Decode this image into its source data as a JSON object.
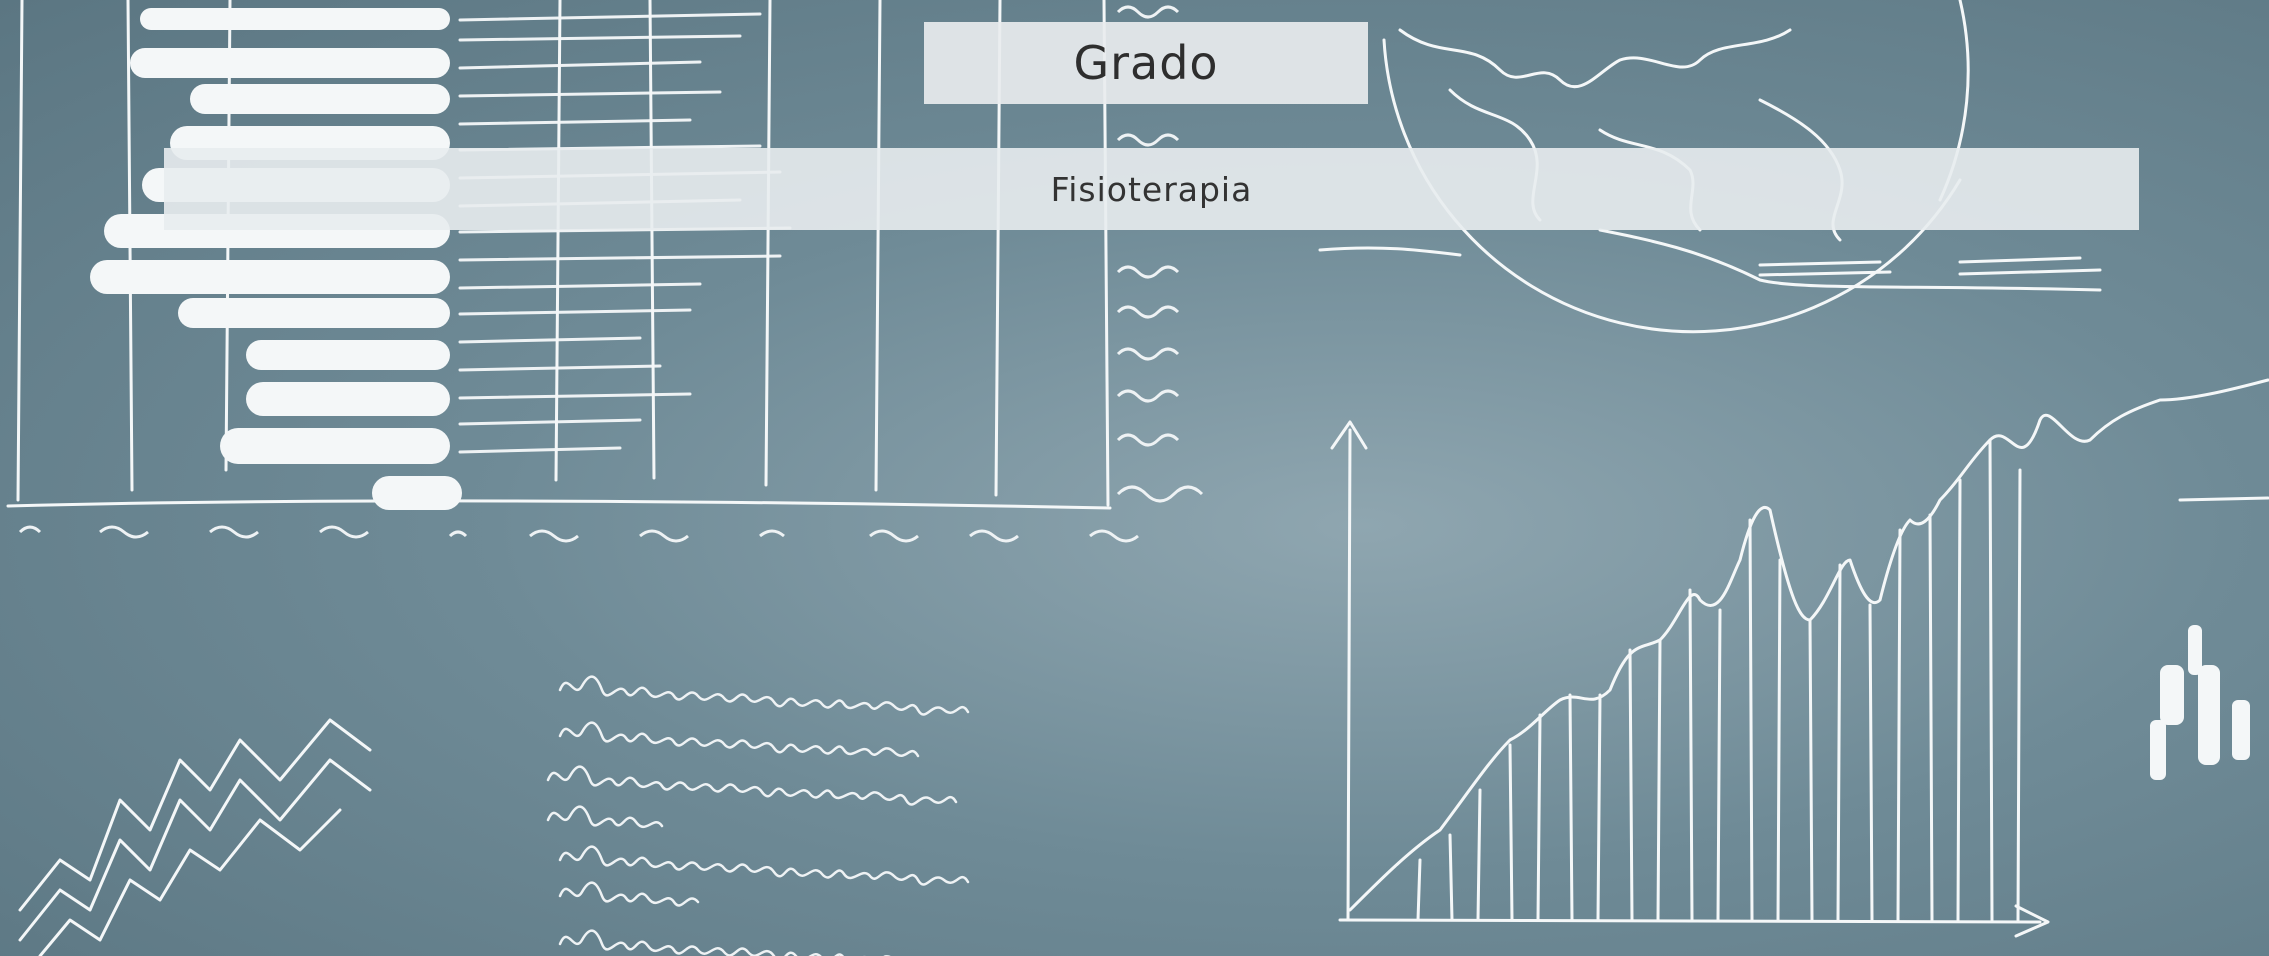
{
  "banner": {
    "title": "Grado",
    "subtitle": "Fisioterapia"
  }
}
